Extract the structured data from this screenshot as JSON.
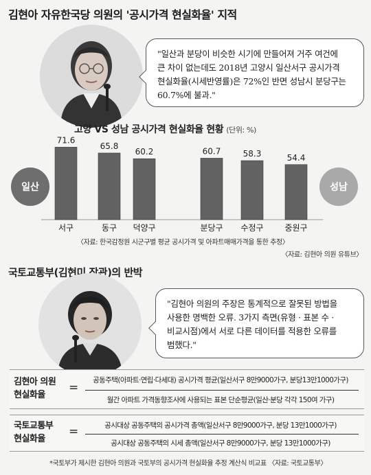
{
  "title": "김현아 자유한국당 의원의 '공시가격 현실화율' 지적",
  "quote1": [
    "\"일산과 분당이 비슷한 시기에 만들어져 거주 여건에",
    "큰 차이 없는데도 2018년 고양시 일산서구 공시가격",
    "현실화율(시세반영률)은 72%인 반면 성남시 분당구는",
    "60.7%에 불과.\""
  ],
  "chart_data": {
    "type": "bar",
    "title": "고양 VS 성남 공시가격 현실화율 현황",
    "unit": "(단위: %)",
    "groups": [
      {
        "name": "일산",
        "categories": [
          "서구",
          "동구",
          "덕양구"
        ],
        "values": [
          71.6,
          65.8,
          60.2
        ],
        "value_labels": [
          "71.6",
          "65.8",
          "60.2"
        ]
      },
      {
        "name": "성남",
        "categories": [
          "분당구",
          "수정구",
          "중원구"
        ],
        "values": [
          60.7,
          58.3,
          54.4
        ],
        "value_labels": [
          "60.7",
          "58.3",
          "54.4"
        ]
      }
    ],
    "ylim": [
      0,
      80
    ],
    "source1": "〈자료: 한국감정원 시군구별 평균 공시가격 및 아파트매매가격을 통한 추정〉",
    "source2": "〈자료: 김현아 의원 유튜브〉",
    "colors": {
      "bar": "#626262",
      "bar_edge": "#3a3a3a",
      "ilsan_badge": "#6e6e6e",
      "seongnam_badge": "#a9a9a9",
      "text": "#222222"
    }
  },
  "section2_title": "국토교통부(김현미 장관)의 반박",
  "quote2": [
    "\"김현아 의원의 주장은 통계적으로 잘못된 방법을",
    "사용한 명백한 오류. 3가지 측면(유형 · 표본 수 ·",
    "비교시점)에서 서로 다른 데이터를 적용한 오류를",
    "범했다.\""
  ],
  "formula1": {
    "label": [
      "김현아 의원",
      "현실화율"
    ],
    "eq": "=",
    "numerator": "공동주택(아파트·연립·다세대) 공시가격 평균(일산서구 8만9000가구, 분당13만1000가구)",
    "denominator": "월간 아파트 가격동향조사에 사용되는 표본 단순평균(일산·분당 각각 150여 가구)"
  },
  "formula2": {
    "label": [
      "국토교통부",
      "현실화율"
    ],
    "eq": "=",
    "numerator": "공시대상 공동주택의 공시가격 총액(일산서구 8만9000가구, 분당 13만1000가구)",
    "denominator": "공시대상 공동주택의 시세 총액(일산서구 8만9000가구, 분당 13만1000가구)"
  },
  "footnote": "*국토부가 제시한 김현아 의원과 국토부의 공시가격 현실화율 추정 계산식 비교표 〈자료: 국토교통부〉"
}
